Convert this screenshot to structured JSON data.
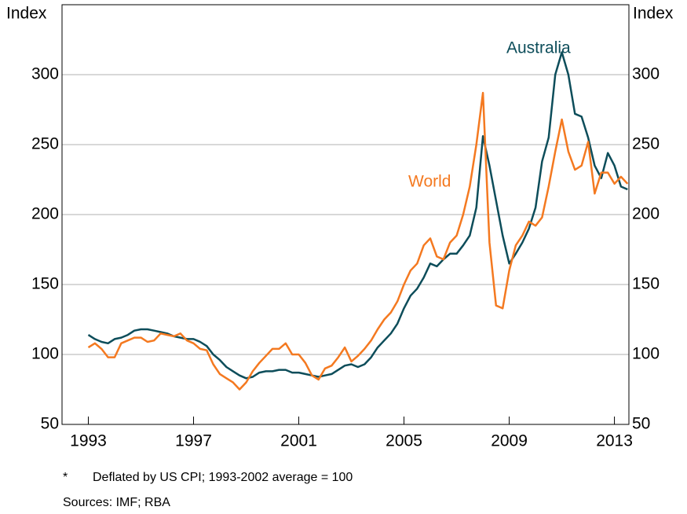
{
  "chart_data": {
    "type": "line",
    "y_axis_label": "Index",
    "y2_axis_label": "Index",
    "x": [
      1993,
      1993.25,
      1993.5,
      1993.75,
      1994,
      1994.25,
      1994.5,
      1994.75,
      1995,
      1995.25,
      1995.5,
      1995.75,
      1996,
      1996.25,
      1996.5,
      1996.75,
      1997,
      1997.25,
      1997.5,
      1997.75,
      1998,
      1998.25,
      1998.5,
      1998.75,
      1999,
      1999.25,
      1999.5,
      1999.75,
      2000,
      2000.25,
      2000.5,
      2000.75,
      2001,
      2001.25,
      2001.5,
      2001.75,
      2002,
      2002.25,
      2002.5,
      2002.75,
      2003,
      2003.25,
      2003.5,
      2003.75,
      2004,
      2004.25,
      2004.5,
      2004.75,
      2005,
      2005.25,
      2005.5,
      2005.75,
      2006,
      2006.25,
      2006.5,
      2006.75,
      2007,
      2007.25,
      2007.5,
      2007.75,
      2008,
      2008.25,
      2008.5,
      2008.75,
      2009,
      2009.25,
      2009.5,
      2009.75,
      2010,
      2010.25,
      2010.5,
      2010.75,
      2011,
      2011.25,
      2011.5,
      2011.75,
      2012,
      2012.25,
      2012.5,
      2012.75,
      2013,
      2013.25,
      2013.5
    ],
    "series": [
      {
        "name": "Australia",
        "color": "#0d4d5a",
        "values": [
          114,
          111,
          109,
          108,
          111,
          112,
          114,
          117,
          118,
          118,
          117,
          116,
          115,
          113,
          112,
          111,
          111,
          109,
          106,
          100,
          96,
          91,
          88,
          85,
          83,
          84,
          87,
          88,
          88,
          89,
          89,
          87,
          87,
          86,
          85,
          84,
          85,
          86,
          89,
          92,
          93,
          91,
          93,
          98,
          105,
          110,
          115,
          122,
          133,
          142,
          147,
          155,
          165,
          163,
          168,
          172,
          172,
          178,
          185,
          205,
          256,
          235,
          210,
          185,
          165,
          172,
          180,
          190,
          205,
          238,
          255,
          300,
          316,
          300,
          272,
          270,
          255,
          235,
          226,
          244,
          235,
          220,
          218
        ]
      },
      {
        "name": "World",
        "color": "#f47920",
        "values": [
          105,
          108,
          104,
          98,
          98,
          108,
          110,
          112,
          112,
          109,
          110,
          115,
          114,
          113,
          115,
          110,
          108,
          104,
          103,
          93,
          86,
          83,
          80,
          75,
          80,
          88,
          94,
          99,
          104,
          104,
          108,
          100,
          100,
          94,
          85,
          82,
          90,
          92,
          98,
          105,
          95,
          99,
          104,
          110,
          118,
          125,
          130,
          138,
          150,
          160,
          165,
          178,
          183,
          170,
          168,
          180,
          185,
          200,
          220,
          250,
          287,
          180,
          135,
          133,
          160,
          178,
          185,
          195,
          192,
          198,
          220,
          245,
          268,
          245,
          232,
          235,
          252,
          215,
          230,
          230,
          222,
          227,
          222
        ]
      }
    ],
    "xlim": [
      1992,
      2013.55
    ],
    "xticks": [
      1993,
      1997,
      2001,
      2005,
      2009,
      2013
    ],
    "ylim": [
      50,
      350
    ],
    "yticks": [
      50,
      100,
      150,
      200,
      250,
      300
    ],
    "y2lim": [
      50,
      350
    ],
    "y2ticks": [
      50,
      100,
      150,
      200,
      250,
      300
    ],
    "grid": true,
    "notes": [
      {
        "mark": "*",
        "text": "Deflated by US CPI; 1993-2002 average = 100"
      }
    ],
    "sources": "Sources:  IMF; RBA"
  }
}
